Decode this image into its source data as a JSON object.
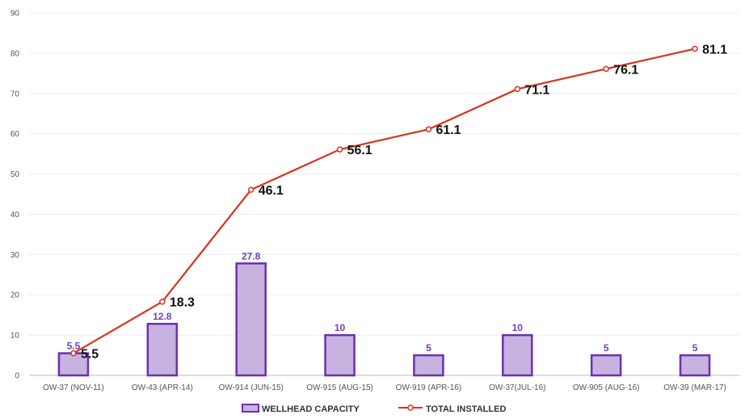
{
  "chart_data": {
    "type": "bar",
    "categories": [
      "OW-37 (NOV-11)",
      "OW-43 (APR-14)",
      "OW-914 (JUN-15)",
      "OW-915 (AUG-15)",
      "OW-919 (APR-16)",
      "OW-37(JUL-16)",
      "OW-905 (AUG-16)",
      "OW-39 (MAR-17)"
    ],
    "series": [
      {
        "name": "WELLHEAD CAPACITY",
        "type": "bar",
        "values": [
          5.5,
          12.8,
          27.8,
          10,
          5,
          10,
          5,
          5
        ],
        "value_labels": [
          "5.5",
          "12.8",
          "27.8",
          "10",
          "5",
          "10",
          "5",
          "5"
        ],
        "color": "#c8b2e0",
        "stroke": "#6b2fb3"
      },
      {
        "name": "TOTAL INSTALLED",
        "type": "line",
        "values": [
          5.5,
          18.3,
          46.1,
          56.1,
          61.1,
          71.1,
          76.1,
          81.1
        ],
        "value_labels": [
          "5.5",
          "18.3",
          "46.1",
          "56.1",
          "61.1",
          "71.1",
          "76.1",
          "81.1"
        ],
        "color": "#d9321f"
      }
    ],
    "title": "",
    "xlabel": "",
    "ylabel": "",
    "ylim": [
      0,
      90
    ],
    "yticks": [
      0,
      10,
      20,
      30,
      40,
      50,
      60,
      70,
      80,
      90
    ],
    "grid": true,
    "legend_position": "bottom-center"
  }
}
